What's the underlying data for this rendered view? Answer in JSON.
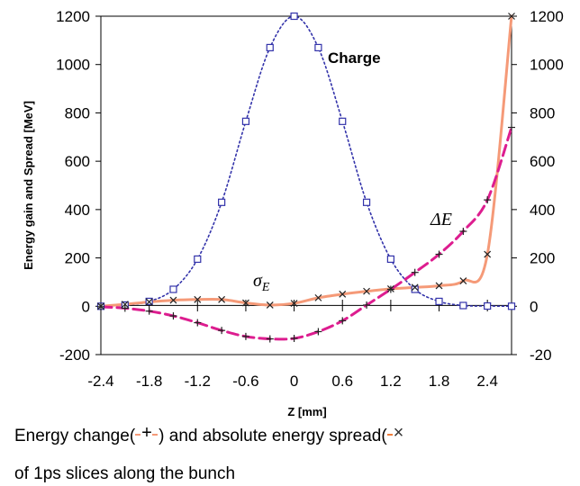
{
  "chart_data": {
    "type": "line",
    "xlabel": "Z [mm]",
    "ylabel": "Energy gain and Spread [MeV]",
    "xlim": [
      -2.4,
      2.7
    ],
    "ylim_left": [
      -200,
      1200
    ],
    "ylim_right_ticks": [
      "1200",
      "1000",
      "800",
      "600",
      "400",
      "200",
      "0",
      "-20"
    ],
    "x_ticks": [
      "-2.4",
      "-1.8",
      "-1.2",
      "-0.6",
      "0",
      "0.6",
      "1.2",
      "1.8",
      "2.4"
    ],
    "y_ticks": [
      "1200",
      "1000",
      "800",
      "600",
      "400",
      "200",
      "0",
      "-200"
    ],
    "grid": false,
    "series": [
      {
        "name": "Charge",
        "color": "#3333aa",
        "style": "dotted",
        "marker": "square",
        "x": [
          -2.4,
          -2.1,
          -1.8,
          -1.5,
          -1.2,
          -0.9,
          -0.6,
          -0.3,
          0.0,
          0.3,
          0.6,
          0.9,
          1.2,
          1.5,
          1.8,
          2.1,
          2.4,
          2.7
        ],
        "y": [
          0,
          5,
          20,
          70,
          195,
          430,
          765,
          1070,
          1200,
          1070,
          765,
          430,
          195,
          70,
          20,
          3,
          1,
          0
        ]
      },
      {
        "name": "ΔE",
        "color": "#dd1d8f",
        "style": "dashed",
        "marker": "plus",
        "x": [
          -2.4,
          -2.1,
          -1.8,
          -1.5,
          -1.2,
          -0.9,
          -0.6,
          -0.3,
          0.0,
          0.3,
          0.6,
          0.9,
          1.2,
          1.5,
          1.8,
          2.1,
          2.4,
          2.7
        ],
        "y": [
          -2,
          -8,
          -20,
          -40,
          -68,
          -100,
          -125,
          -135,
          -133,
          -105,
          -60,
          5,
          70,
          140,
          215,
          310,
          440,
          740
        ]
      },
      {
        "name": "σE",
        "color": "#f59a78",
        "style": "solid",
        "marker": "cross",
        "x": [
          -2.4,
          -2.1,
          -1.8,
          -1.5,
          -1.2,
          -0.9,
          -0.6,
          -0.3,
          0.0,
          0.3,
          0.6,
          0.9,
          1.2,
          1.5,
          1.8,
          2.1,
          2.4,
          2.7
        ],
        "y": [
          0,
          8,
          18,
          25,
          28,
          28,
          14,
          5,
          12,
          35,
          50,
          62,
          72,
          78,
          85,
          105,
          215,
          1200
        ]
      }
    ],
    "annotations": {
      "charge": "Charge",
      "delta_e": "ΔE",
      "sigma_main": "σ",
      "sigma_sub": "E"
    }
  },
  "caption": {
    "line1_pre": "Energy change(",
    "line1_mid": ") and absolute energy spread(",
    "line2": "of 1ps slices along the bunch",
    "plus_glyph": "+",
    "cross_glyph": "×"
  }
}
